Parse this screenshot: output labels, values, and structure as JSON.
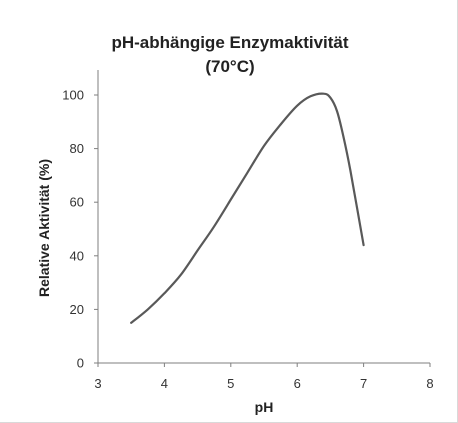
{
  "chart_data": {
    "type": "line",
    "title": "pH-abhängige Enzymaktivität",
    "subtitle": "(70°C)",
    "xlabel": "pH",
    "ylabel": "Relative Aktivität (%)",
    "xlim": [
      3,
      8
    ],
    "ylim": [
      0,
      100
    ],
    "xticks": [
      "3",
      "4",
      "5",
      "6",
      "7",
      "8"
    ],
    "yticks": [
      "0",
      "20",
      "40",
      "60",
      "80",
      "100"
    ],
    "grid": false,
    "legend": "none",
    "series": [
      {
        "color": "#595959",
        "x": [
          3.5,
          3.75,
          4.0,
          4.25,
          4.5,
          4.75,
          5.0,
          5.25,
          5.5,
          5.75,
          6.0,
          6.2,
          6.4,
          6.5,
          6.6,
          6.7,
          6.8,
          6.9,
          7.0
        ],
        "y": [
          15,
          20,
          26,
          33,
          42,
          51,
          61,
          71,
          81,
          89,
          96,
          99.5,
          100.5,
          99,
          94,
          84,
          72,
          58,
          44
        ]
      }
    ]
  }
}
